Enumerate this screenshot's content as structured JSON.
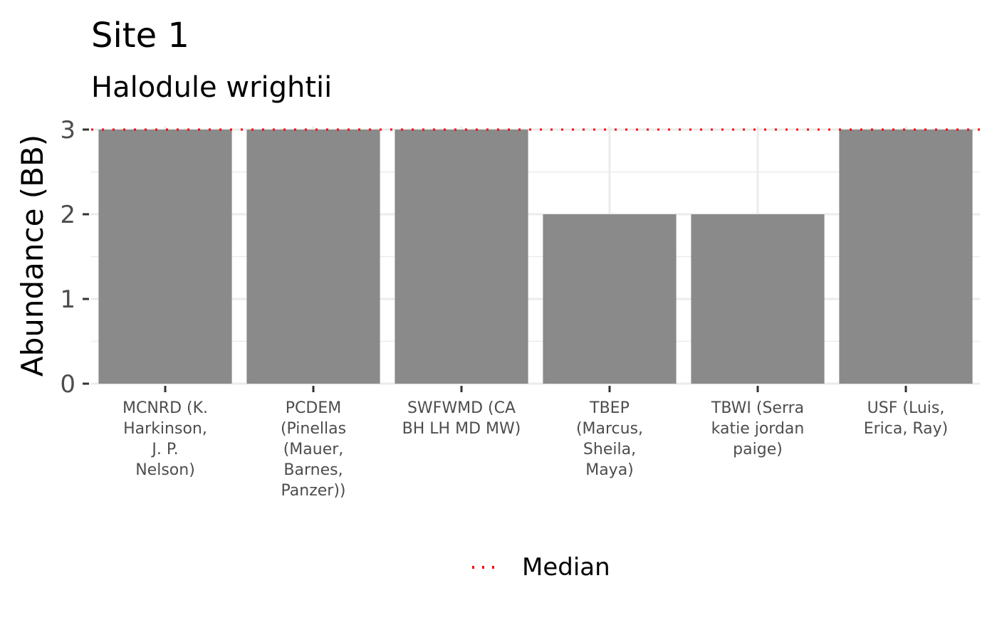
{
  "chart_data": {
    "type": "bar",
    "title": "Site 1",
    "subtitle": "Halodule wrightii",
    "xlabel": "",
    "ylabel": "Abundance (BB)",
    "categories": [
      "MCNRD (K. Harkinson, J. P. Nelson)",
      "PCDEM (Pinellas (Mauer, Barnes, Panzer))",
      "SWFWMD (CA BH LH MD MW)",
      "TBEP (Marcus, Sheila, Maya)",
      "TBWI (Serra katie jordan paige)",
      "USF (Luis, Erica, Ray)"
    ],
    "category_lines": [
      [
        "MCNRD (K.",
        "Harkinson,",
        "J. P.",
        "Nelson)"
      ],
      [
        "PCDEM",
        "(Pinellas",
        "(Mauer,",
        "Barnes,",
        "Panzer))"
      ],
      [
        "SWFWMD (CA",
        "BH LH MD MW)"
      ],
      [
        "TBEP",
        "(Marcus,",
        "Sheila,",
        "Maya)"
      ],
      [
        "TBWI (Serra",
        "katie jordan",
        "paige)"
      ],
      [
        "USF (Luis,",
        "Erica, Ray)"
      ]
    ],
    "values": [
      3,
      3,
      3,
      2,
      2,
      3
    ],
    "yticks": [
      0,
      1,
      2,
      3
    ],
    "ylim": [
      0,
      3
    ],
    "grid": true,
    "bar_color": "#8a8a8a",
    "reference_line": {
      "name": "Median",
      "value": 3,
      "color": "#ff0000",
      "style": "dotted"
    },
    "legend": {
      "position": "bottom",
      "entries": [
        "Median"
      ]
    }
  }
}
